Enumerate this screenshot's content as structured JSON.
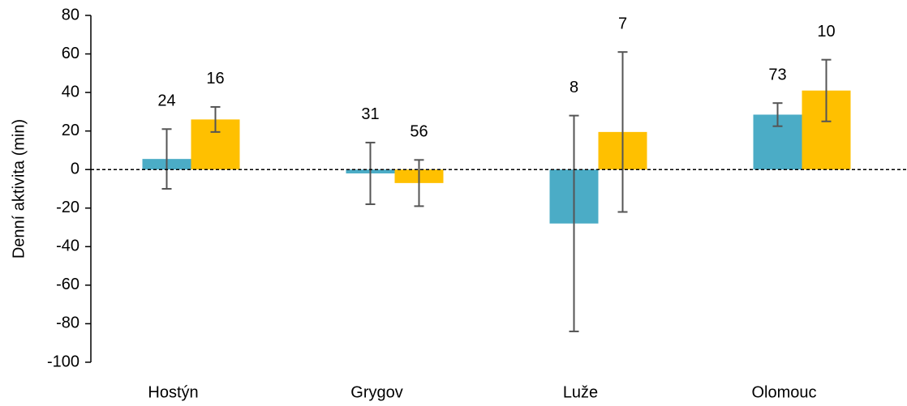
{
  "chart_data": {
    "type": "bar",
    "y_label": "Denní aktivita (min)",
    "categories": [
      "Hostýn",
      "Grygov",
      "Luže",
      "Olomouc"
    ],
    "series": [
      {
        "color": "#4bacc6",
        "values": [
          5.5,
          -2,
          -28,
          28.5
        ],
        "errors": [
          15.5,
          16,
          56,
          6
        ],
        "labels": [
          24,
          31,
          8,
          73
        ]
      },
      {
        "color": "#ffc000",
        "values": [
          26,
          -7,
          19.5,
          41
        ],
        "errors": [
          6.5,
          12,
          41.5,
          16
        ],
        "labels": [
          16,
          56,
          7,
          10
        ]
      }
    ],
    "ylim": [
      -100,
      80
    ],
    "yticks": [
      -100,
      -80,
      -60,
      -40,
      -20,
      0,
      20,
      40,
      60,
      80
    ]
  }
}
